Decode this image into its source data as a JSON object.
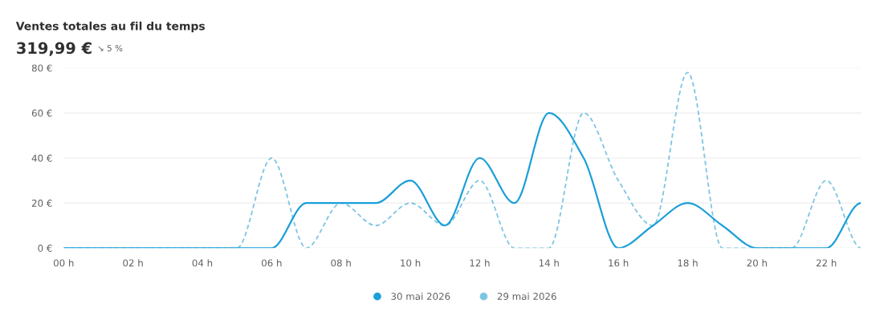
{
  "chart_data": {
    "type": "line",
    "title": "Ventes totales au fil du temps",
    "subtitle": "319,99 €",
    "annotations": [
      "↘ 5 %"
    ],
    "x": [
      0,
      1,
      2,
      3,
      4,
      5,
      6,
      7,
      8,
      9,
      10,
      11,
      12,
      13,
      14,
      15,
      16,
      17,
      18,
      19,
      20,
      21,
      22,
      23
    ],
    "series": [
      {
        "name": "30 mai 2026",
        "color": "#1a9fd8",
        "line_style": "solid",
        "values": [
          0,
          0,
          0,
          0,
          0,
          0,
          0,
          20,
          20,
          20,
          30,
          10,
          40,
          20,
          60,
          40,
          0,
          10,
          20,
          10,
          0,
          0,
          0,
          20
        ]
      },
      {
        "name": "29 mai 2026",
        "color": "#7ec5e2",
        "line_style": "dashed",
        "values": [
          0,
          0,
          0,
          0,
          0,
          0,
          40,
          0,
          20,
          10,
          20,
          10,
          30,
          0,
          0,
          60,
          30,
          10,
          78,
          0,
          0,
          0,
          30,
          0
        ]
      }
    ],
    "xlim": [
      0,
      23
    ],
    "xticks": [
      {
        "value": 0,
        "label": "00 h"
      },
      {
        "value": 2,
        "label": "02 h"
      },
      {
        "value": 4,
        "label": "04 h"
      },
      {
        "value": 6,
        "label": "06 h"
      },
      {
        "value": 8,
        "label": "08 h"
      },
      {
        "value": 10,
        "label": "10 h"
      },
      {
        "value": 12,
        "label": "12 h"
      },
      {
        "value": 14,
        "label": "14 h"
      },
      {
        "value": 16,
        "label": "16 h"
      },
      {
        "value": 18,
        "label": "18 h"
      },
      {
        "value": 20,
        "label": "20 h"
      },
      {
        "value": 22,
        "label": "22 h"
      }
    ],
    "ylim": [
      0,
      80
    ],
    "yticks": [
      {
        "value": 0,
        "label": "0 €"
      },
      {
        "value": 20,
        "label": "20 €"
      },
      {
        "value": 40,
        "label": "40 €"
      },
      {
        "value": 60,
        "label": "60 €"
      },
      {
        "value": 80,
        "label": "80 €"
      }
    ],
    "grid": "y",
    "legend": "bottom",
    "marker": "none"
  }
}
